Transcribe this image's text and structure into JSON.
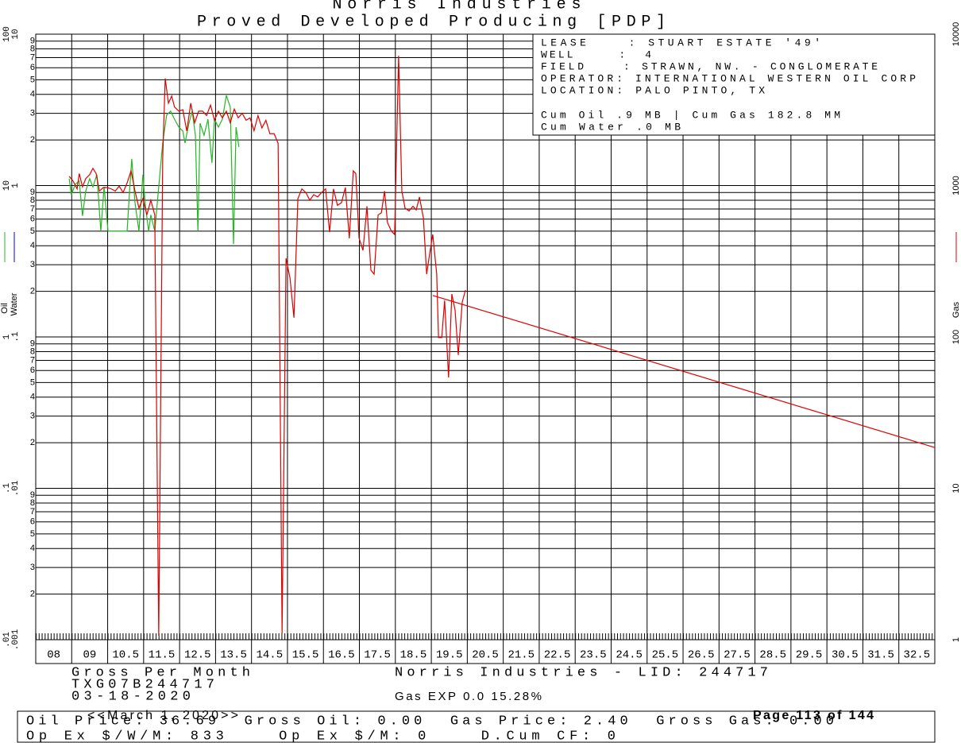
{
  "chart_data": {
    "type": "line",
    "title": "Norris Industries",
    "subtitle": "Proved Developed Producing [PDP]",
    "info": [
      "LEASE    : STUART ESTATE '49'",
      "WELL     :  4",
      "FIELD    : STRAWN, NW. - CONGLOMERATE",
      "OPERATOR: INTERNATIONAL WESTERN OIL CORP",
      "LOCATION: PALO PINTO, TX",
      "Cum Oil .9 MB | Cum Gas 182.8 MM",
      "Cum Water .0 MB"
    ],
    "ylabel": "Oil",
    "water_label": "Water",
    "y2label": "Gas",
    "water_color": "#0000ff",
    "log_scale": true,
    "grid": true,
    "xlim": [
      8,
      33
    ],
    "xticks": [
      {
        "value": 8.5,
        "label": "08"
      },
      {
        "value": 9.5,
        "label": "09"
      },
      10.5,
      11.5,
      12.5,
      13.5,
      14.5,
      15.5,
      16.5,
      17.5,
      18.5,
      19.5,
      20.5,
      21.5,
      22.5,
      23.5,
      24.5,
      25.5,
      26.5,
      27.5,
      28.5,
      29.5,
      30.5,
      31.5,
      32.5
    ],
    "ylim": [
      0.01,
      100
    ],
    "yticks": [
      100,
      10,
      1,
      {
        "value": 0.1,
        "label": ".1"
      },
      {
        "value": 0.01,
        "label": ".01"
      }
    ],
    "water_ylim": [
      0.001,
      10
    ],
    "water_yticks": [
      10,
      1,
      {
        "value": 0.1,
        "label": ".1"
      },
      {
        "value": 0.01,
        "label": ".01"
      },
      {
        "value": 0.001,
        "label": ".001"
      }
    ],
    "y2lim": [
      1,
      10000
    ],
    "y2ticks": [
      10000,
      1000,
      100,
      10,
      1
    ],
    "minor_ticks": [
      2,
      3,
      4,
      5,
      6,
      7,
      8,
      9
    ],
    "series": [
      {
        "color": "#22b822",
        "x": [
          8.93,
          8.99,
          9.1,
          9.21,
          9.3,
          9.39,
          9.5,
          9.59,
          9.7,
          9.81,
          9.9,
          10.01,
          10.21,
          10.43,
          10.54,
          10.61,
          10.67,
          10.76,
          10.87,
          10.98,
          11.05,
          11.14,
          11.2,
          11.31,
          11.53,
          11.64,
          11.75,
          11.86,
          11.98,
          12.09,
          12.15,
          12.26,
          12.35,
          12.44,
          12.51,
          12.57,
          12.68,
          12.79,
          12.9,
          12.97,
          13.08,
          13.19,
          13.3,
          13.41,
          13.5,
          13.57,
          13.65
        ],
        "values": [
          11.1,
          8.7,
          10.2,
          10.7,
          6.3,
          9.2,
          11.1,
          9.8,
          11.8,
          5.0,
          9.8,
          5.0,
          5.0,
          5.0,
          5.0,
          9.2,
          15.0,
          7.7,
          5.0,
          11.8,
          7.3,
          5.0,
          6.4,
          5.0,
          19.1,
          29.2,
          31.0,
          27.4,
          24.3,
          22.9,
          19.1,
          25.8,
          31.0,
          21.5,
          5.0,
          25.8,
          21.5,
          27.4,
          14.1,
          27.4,
          24.3,
          27.4,
          39.4,
          32.9,
          4.1,
          24.3,
          18.0
        ]
      },
      {
        "color": "#e00000",
        "axis": "y2",
        "x": [
          8.93,
          9.04,
          9.15,
          9.21,
          9.3,
          9.39,
          9.5,
          9.59,
          9.68,
          9.77,
          9.88,
          9.99,
          10.1,
          10.21,
          10.32,
          10.43,
          10.54,
          10.65,
          10.76,
          10.87,
          10.98,
          11.09,
          11.2,
          11.31,
          11.42,
          11.53,
          11.6,
          11.69,
          11.78,
          11.86,
          11.98,
          12.09,
          12.2,
          12.31,
          12.42,
          12.53,
          12.64,
          12.75,
          12.86,
          12.97,
          13.08,
          13.19,
          13.3,
          13.41,
          13.52,
          13.63,
          13.74,
          13.85,
          13.96,
          14.07,
          14.18,
          14.29,
          14.4,
          14.51,
          14.63,
          14.74,
          14.85,
          14.96,
          15.07,
          15.18,
          15.29,
          15.4,
          15.51,
          15.62,
          15.73,
          15.84,
          15.95,
          16.06,
          16.17,
          16.28,
          16.39,
          16.5,
          16.61,
          16.72,
          16.83,
          16.9,
          16.99,
          17.1,
          17.21,
          17.32,
          17.41,
          17.52,
          17.61,
          17.7,
          17.78,
          17.89,
          17.98,
          18.09,
          18.18,
          18.27,
          18.38,
          18.49,
          18.58,
          18.67,
          18.78,
          18.87,
          18.95,
          19.04,
          19.15,
          19.2,
          19.29,
          19.37,
          19.48,
          19.57,
          19.66,
          19.75,
          19.86,
          19.95
        ],
        "values": [
          1150,
          1070,
          950,
          1200,
          980,
          1110,
          1180,
          1300,
          1200,
          920,
          970,
          970,
          950,
          920,
          990,
          900,
          1040,
          1250,
          920,
          710,
          820,
          640,
          800,
          640,
          1.06,
          1500,
          5100,
          3500,
          3900,
          3300,
          3100,
          3170,
          2290,
          3500,
          2600,
          3100,
          3100,
          2900,
          3400,
          2700,
          3100,
          2800,
          3100,
          2600,
          3200,
          2800,
          3000,
          2700,
          2800,
          2300,
          2900,
          2400,
          2700,
          2200,
          2200,
          1900,
          1.1,
          331,
          245,
          134,
          820,
          950,
          900,
          800,
          870,
          840,
          900,
          950,
          493,
          950,
          740,
          770,
          970,
          448,
          1250,
          1200,
          450,
          373,
          730,
          276,
          260,
          640,
          660,
          920,
          570,
          500,
          475,
          7200,
          920,
          710,
          680,
          730,
          690,
          840,
          610,
          260,
          350,
          475,
          260,
          99,
          99,
          174,
          54,
          192,
          151,
          76,
          170,
          204
        ]
      },
      {
        "color": "#e00000",
        "axis": "y2",
        "x": [
          19.04,
          33
        ],
        "values": [
          188,
          18.6
        ]
      }
    ]
  },
  "footer": {
    "left": [
      "Gross Per Month",
      "TXG07B244717",
      "03-18-2020"
    ],
    "center": "Norris Industries - LID: 244717",
    "gas_exp": "Gas EXP 0.0 15.28%",
    "prices": "Oil Price: 36.69  Gross Oil: 0.00  Gas Price: 2.40  Gross Gas: 0.00",
    "opex": "Op Ex $/W/M: 833    Op Ex $/M: 0    D.Cum CF: 0",
    "date": "<<March 1, 2020>>",
    "page": "Page 113 of 144"
  }
}
